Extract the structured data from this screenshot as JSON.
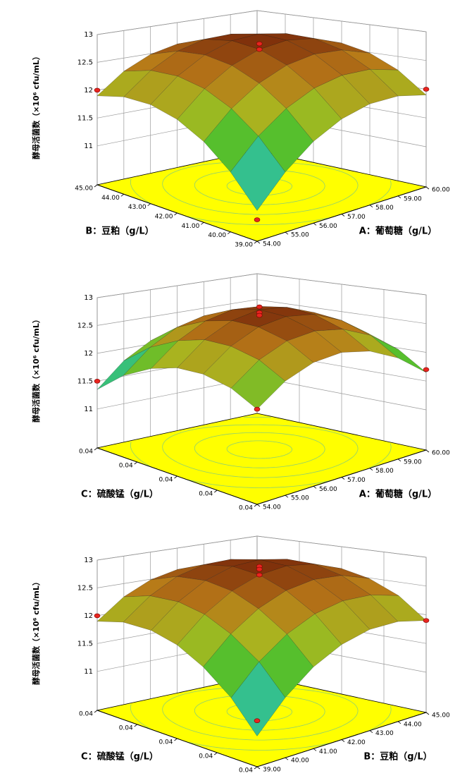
{
  "chart_data": [
    {
      "type": "surface",
      "x_label": "A：葡萄糖（g/L）",
      "y_label": "B：豆粕（g/L）",
      "z_label": "酵母活菌数（×10⁶ cfu/mL）",
      "x": [
        54,
        55,
        56,
        57,
        58,
        59,
        60
      ],
      "y": [
        39,
        40,
        41,
        42,
        43,
        44,
        45
      ],
      "z": [
        [
          10.8,
          11.29,
          11.66,
          11.9,
          12.02,
          12.02,
          11.9
        ],
        [
          11.29,
          11.76,
          12.1,
          12.32,
          12.42,
          12.4,
          12.26
        ],
        [
          11.66,
          12.1,
          12.42,
          12.62,
          12.7,
          12.66,
          12.49
        ],
        [
          11.9,
          12.32,
          12.62,
          12.8,
          12.86,
          12.79,
          12.6
        ],
        [
          12.02,
          12.42,
          12.7,
          12.86,
          12.89,
          12.8,
          12.59
        ],
        [
          12.02,
          12.4,
          12.66,
          12.79,
          12.8,
          12.69,
          12.46
        ],
        [
          11.9,
          12.26,
          12.49,
          12.6,
          12.59,
          12.46,
          12.2
        ]
      ],
      "xlim": [
        54,
        60
      ],
      "xticks": [
        {
          "value": 54,
          "label": "54.00"
        },
        {
          "value": 55,
          "label": "55.00"
        },
        {
          "value": 56,
          "label": "56.00"
        },
        {
          "value": 57,
          "label": "57.00"
        },
        {
          "value": 58,
          "label": "58.00"
        },
        {
          "value": 59,
          "label": "59.00"
        },
        {
          "value": 60,
          "label": "60.00"
        }
      ],
      "ylim": [
        39,
        45
      ],
      "yticks": [
        {
          "value": 39,
          "label": "39.00"
        },
        {
          "value": 40,
          "label": "40.00"
        },
        {
          "value": 41,
          "label": "41.00"
        },
        {
          "value": 42,
          "label": "42.00"
        },
        {
          "value": 43,
          "label": "43.00"
        },
        {
          "value": 44,
          "label": "44.00"
        },
        {
          "value": 45,
          "label": "45.00"
        }
      ],
      "zlim": [
        10.3,
        13
      ],
      "zticks": [
        11,
        11.5,
        12,
        12.5,
        13
      ],
      "points": {
        "x": [
          57,
          57,
          54,
          60,
          54
        ],
        "y": [
          42,
          42,
          45,
          39,
          39
        ],
        "z": [
          12.9,
          12.8,
          12.0,
          12.0,
          10.65
        ]
      },
      "point_color": "#e8251f",
      "floor_color": "#ffff00",
      "colormap": [
        "#1a8fe0",
        "#30c0a0",
        "#46c030",
        "#a8b820",
        "#b87818",
        "#7a2a0a"
      ]
    },
    {
      "type": "surface",
      "x_label": "A：葡萄糖（g/L）",
      "y_label": "C：硫酸锰（g/L）",
      "z_label": "酵母活菌数（×10⁶ cfu/mL）",
      "x": [
        54,
        55,
        56,
        57,
        58,
        59,
        60
      ],
      "y": [
        0.036,
        0.0373,
        0.0387,
        0.04,
        0.0413,
        0.0427,
        0.044
      ],
      "z": [
        [
          11.85,
          12.07,
          12.17,
          12.15,
          12.01,
          11.74,
          11.35
        ],
        [
          12.18,
          12.42,
          12.53,
          12.53,
          12.4,
          12.15,
          11.78
        ],
        [
          12.36,
          12.62,
          12.75,
          12.76,
          12.65,
          12.42,
          12.06
        ],
        [
          12.4,
          12.67,
          12.82,
          12.85,
          12.76,
          12.54,
          12.2
        ],
        [
          12.29,
          12.58,
          12.75,
          12.79,
          12.72,
          12.52,
          12.19
        ],
        [
          12.04,
          12.35,
          12.53,
          12.59,
          12.53,
          12.35,
          12.04
        ],
        [
          11.65,
          11.97,
          12.17,
          12.25,
          12.21,
          12.04,
          11.75
        ]
      ],
      "xlim": [
        54,
        60
      ],
      "xticks": [
        {
          "value": 54,
          "label": "54.00"
        },
        {
          "value": 55,
          "label": "55.00"
        },
        {
          "value": 56,
          "label": "56.00"
        },
        {
          "value": 57,
          "label": "57.00"
        },
        {
          "value": 58,
          "label": "58.00"
        },
        {
          "value": 59,
          "label": "59.00"
        },
        {
          "value": 60,
          "label": "60.00"
        }
      ],
      "ylim": [
        0.036,
        0.044
      ],
      "yticks": [
        {
          "value": 0.036,
          "label": "0.04"
        },
        {
          "value": 0.038,
          "label": "0.04"
        },
        0.04,
        {
          "value": 0.042,
          "label": "0.04"
        },
        {
          "value": 0.044,
          "label": "0.04"
        }
      ],
      "zlim": [
        10.3,
        13
      ],
      "zticks": [
        11,
        11.5,
        12,
        12.5,
        13
      ],
      "points": {
        "x": [
          57,
          57,
          57,
          54,
          60,
          54
        ],
        "y": [
          0.04,
          0.04,
          0.04,
          0.044,
          0.036,
          0.036
        ],
        "z": [
          12.9,
          12.8,
          12.75,
          11.5,
          11.7,
          11.85
        ]
      },
      "point_color": "#e8251f",
      "floor_color": "#ffff00",
      "colormap": [
        "#1a8fe0",
        "#30c0a0",
        "#46c030",
        "#a8b820",
        "#b87818",
        "#7a2a0a"
      ]
    },
    {
      "type": "surface",
      "x_label": "B：豆粕（g/L）",
      "y_label": "C：硫酸锰（g/L）",
      "z_label": "酵母活菌数（×10⁶ cfu/mL）",
      "x": [
        39,
        40,
        41,
        42,
        43,
        44,
        45
      ],
      "y": [
        0.036,
        0.0373,
        0.0387,
        0.04,
        0.0413,
        0.0427,
        0.044
      ],
      "z": [
        [
          10.8,
          11.29,
          11.66,
          11.9,
          12.02,
          12.02,
          11.9
        ],
        [
          11.29,
          11.76,
          12.1,
          12.32,
          12.42,
          12.4,
          12.26
        ],
        [
          11.66,
          12.1,
          12.42,
          12.62,
          12.7,
          12.66,
          12.49
        ],
        [
          11.9,
          12.32,
          12.62,
          12.8,
          12.86,
          12.79,
          12.6
        ],
        [
          12.02,
          12.42,
          12.7,
          12.86,
          12.89,
          12.8,
          12.59
        ],
        [
          12.02,
          12.4,
          12.66,
          12.79,
          12.8,
          12.69,
          12.46
        ],
        [
          11.9,
          12.26,
          12.49,
          12.6,
          12.59,
          12.46,
          12.2
        ]
      ],
      "xlim": [
        39,
        45
      ],
      "xticks": [
        {
          "value": 39,
          "label": "39.00"
        },
        {
          "value": 40,
          "label": "40.00"
        },
        {
          "value": 41,
          "label": "41.00"
        },
        {
          "value": 42,
          "label": "42.00"
        },
        {
          "value": 43,
          "label": "43.00"
        },
        {
          "value": 44,
          "label": "44.00"
        },
        {
          "value": 45,
          "label": "45.00"
        }
      ],
      "ylim": [
        0.036,
        0.044
      ],
      "yticks": [
        {
          "value": 0.036,
          "label": "0.04"
        },
        {
          "value": 0.038,
          "label": "0.04"
        },
        0.04,
        {
          "value": 0.042,
          "label": "0.04"
        },
        {
          "value": 0.044,
          "label": "0.04"
        }
      ],
      "zlim": [
        10.3,
        13
      ],
      "zticks": [
        11,
        11.5,
        12,
        12.5,
        13
      ],
      "points": {
        "x": [
          42,
          42,
          42,
          39,
          45,
          39
        ],
        "y": [
          0.04,
          0.04,
          0.04,
          0.044,
          0.036,
          0.036
        ],
        "z": [
          12.95,
          12.9,
          12.8,
          12.0,
          11.9,
          11.05
        ]
      },
      "point_color": "#e8251f",
      "floor_color": "#ffff00",
      "colormap": [
        "#1a8fe0",
        "#30c0a0",
        "#46c030",
        "#a8b820",
        "#b87818",
        "#7a2a0a"
      ]
    }
  ]
}
